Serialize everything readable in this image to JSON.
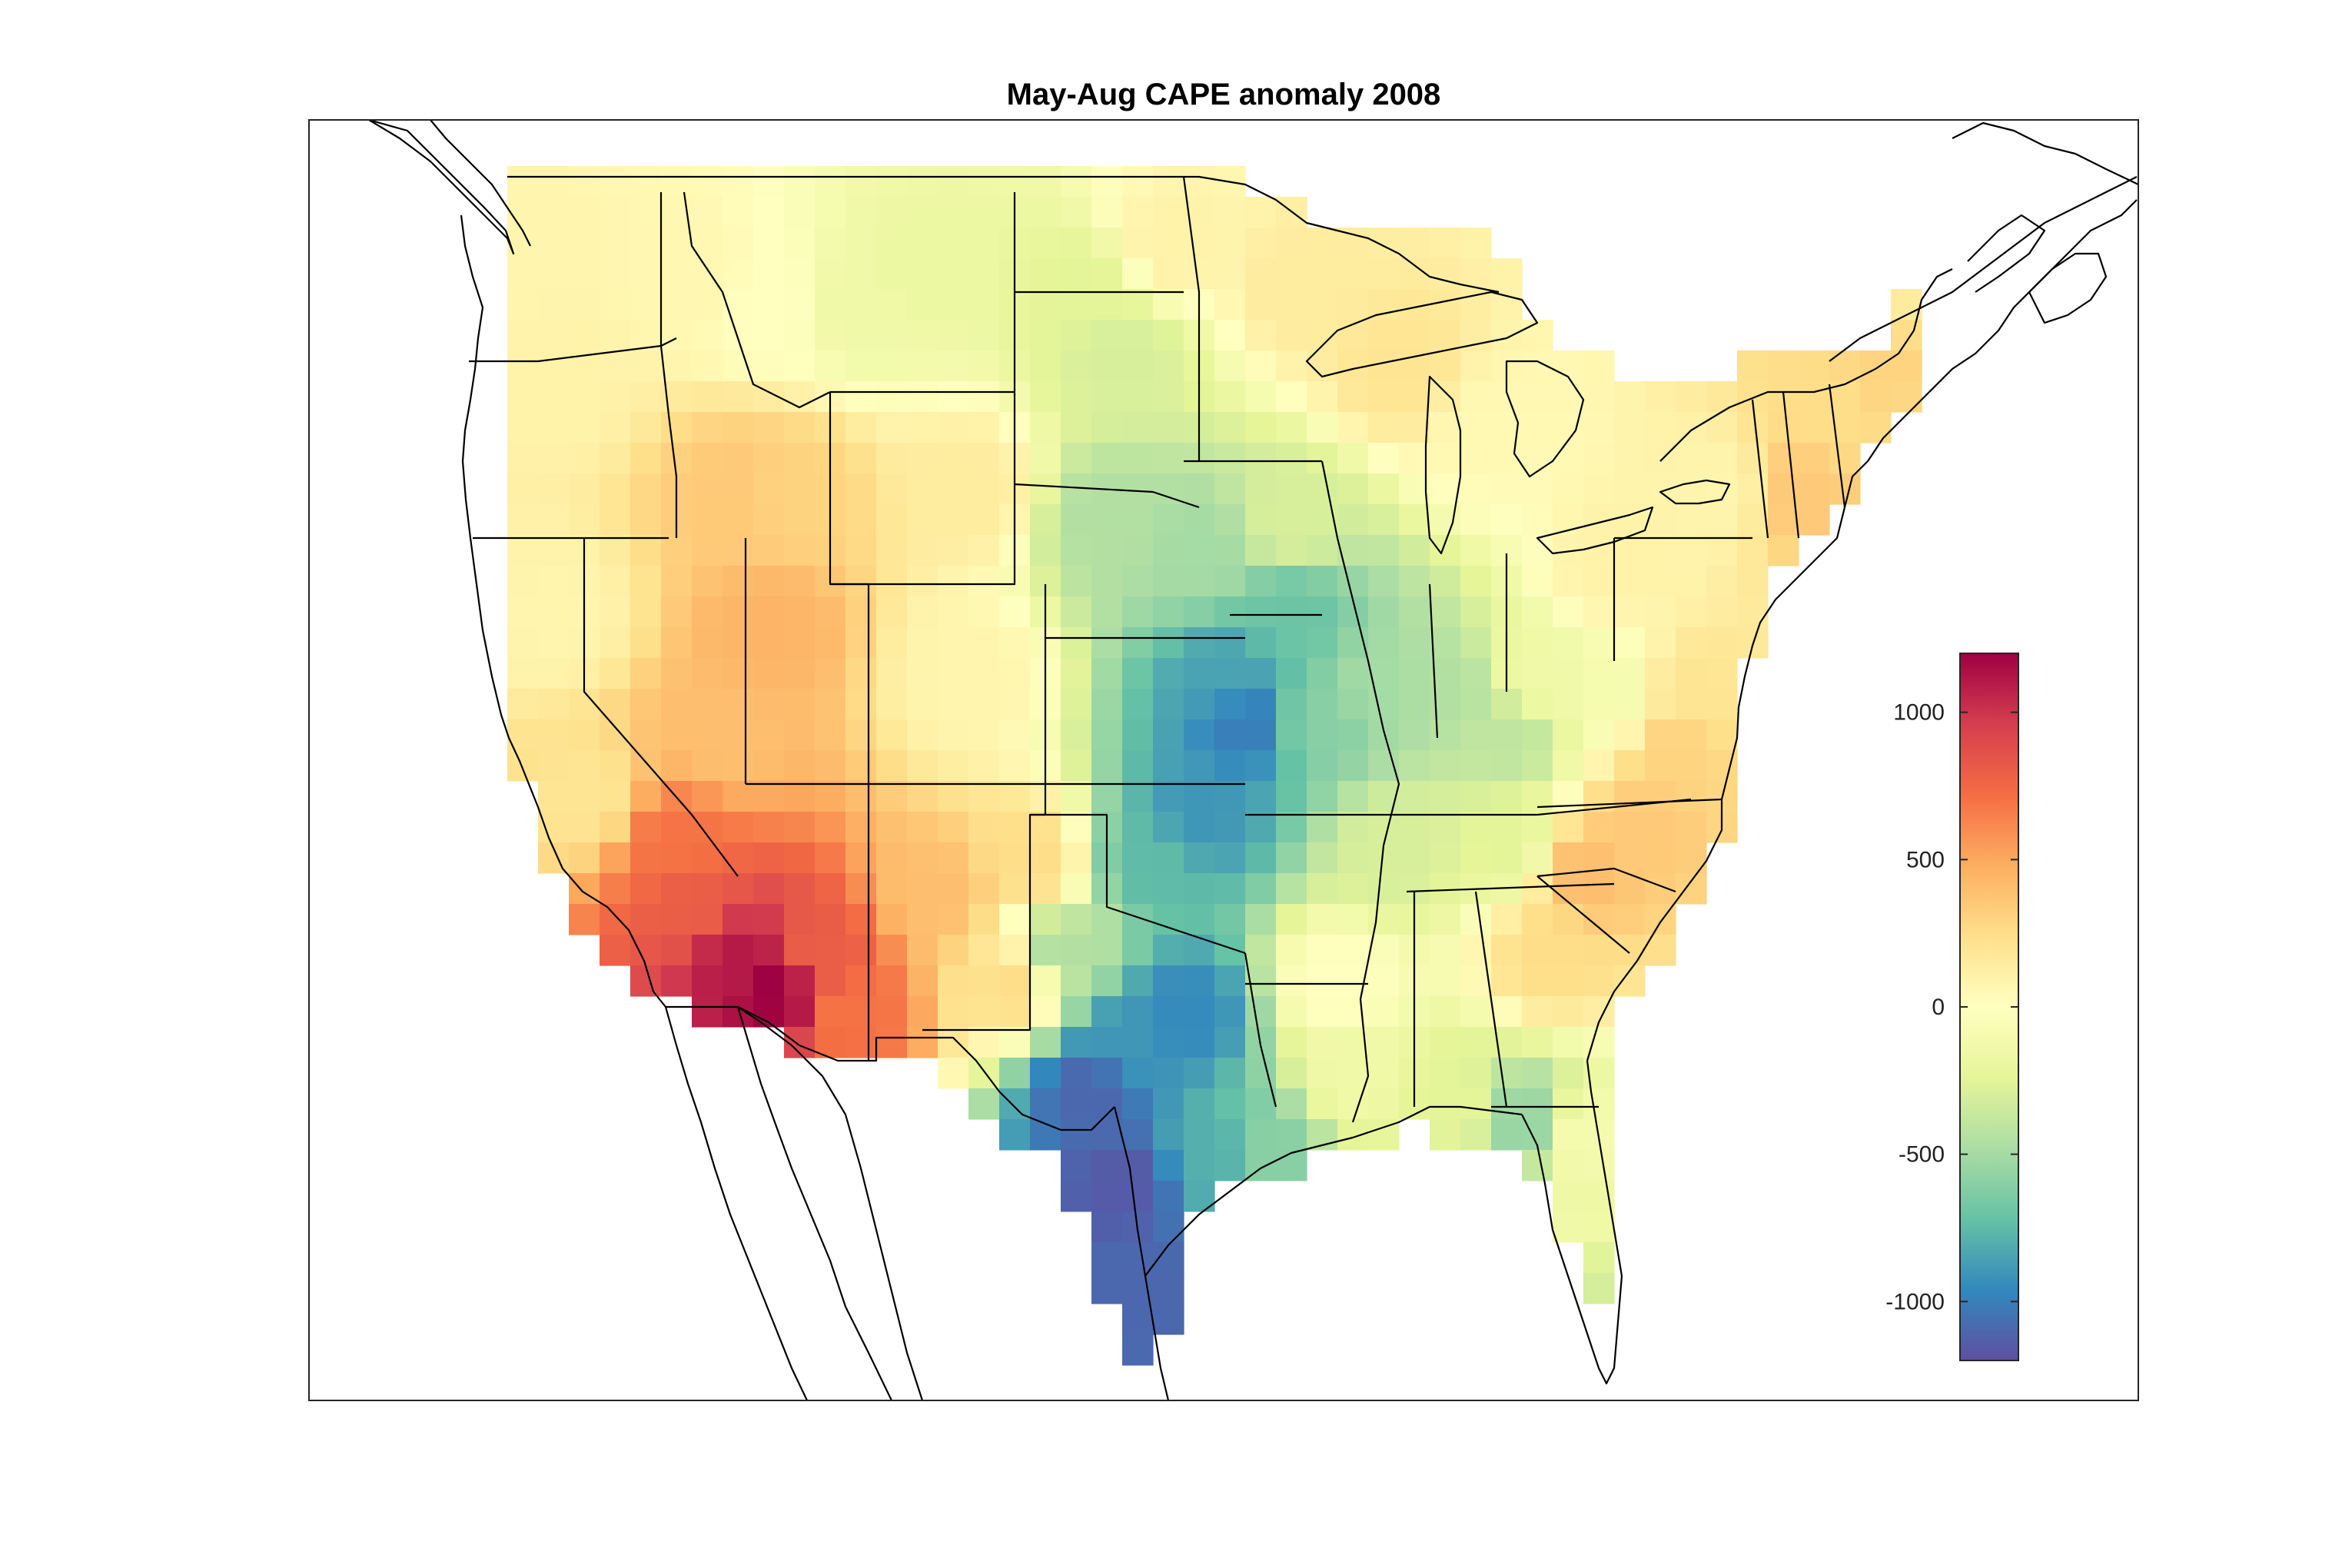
{
  "figure": {
    "title": "May-Aug CAPE anomaly 2008"
  },
  "colorbar": {
    "min": -1200,
    "max": 1200,
    "ticks": [
      1000,
      500,
      0,
      -500,
      -1000
    ],
    "tick_labels": [
      "1000",
      "500",
      "0",
      "-500",
      "-1000"
    ],
    "colors": [
      "#5e4fa2",
      "#3288bd",
      "#66c2a5",
      "#abdda4",
      "#e6f598",
      "#ffffbf",
      "#fee08b",
      "#fdae61",
      "#f46d43",
      "#d53e4f",
      "#9e0142"
    ]
  },
  "chart_data": {
    "type": "heatmap",
    "title": "May-Aug CAPE anomaly 2008",
    "region": "contiguous United States",
    "units": "",
    "value_range": [
      -1200,
      1200
    ],
    "colorbar_ticks": [
      -1000,
      -500,
      0,
      500,
      1000
    ],
    "anomaly_regions": [
      {
        "area": "southern Arizona",
        "value": 1150
      },
      {
        "area": "southeastern California",
        "value": 700
      },
      {
        "area": "southwestern New Mexico",
        "value": 650
      },
      {
        "area": "central Nevada / western Utah",
        "value": 350
      },
      {
        "area": "southern Idaho",
        "value": 250
      },
      {
        "area": "Pacific Northwest / California coast",
        "value": 50
      },
      {
        "area": "Montana / Wyoming",
        "value": -100
      },
      {
        "area": "North & South Dakota",
        "value": -200
      },
      {
        "area": "Minnesota / Wisconsin / Great Lakes",
        "value": 50
      },
      {
        "area": "Nebraska / Iowa",
        "value": -400
      },
      {
        "area": "Kansas",
        "value": -750
      },
      {
        "area": "Missouri / Arkansas border",
        "value": -950
      },
      {
        "area": "Oklahoma",
        "value": -850
      },
      {
        "area": "east Texas",
        "value": -900
      },
      {
        "area": "south Texas",
        "value": -1150
      },
      {
        "area": "Illinois / Indiana / Kentucky",
        "value": -450
      },
      {
        "area": "Tennessee / Ohio valley",
        "value": -250
      },
      {
        "area": "Gulf coast",
        "value": -150
      },
      {
        "area": "Florida panhandle",
        "value": -500
      },
      {
        "area": "Georgia / Carolinas",
        "value": 400
      },
      {
        "area": "Virginia",
        "value": 300
      },
      {
        "area": "Northeast / New England",
        "value": 150
      }
    ]
  }
}
